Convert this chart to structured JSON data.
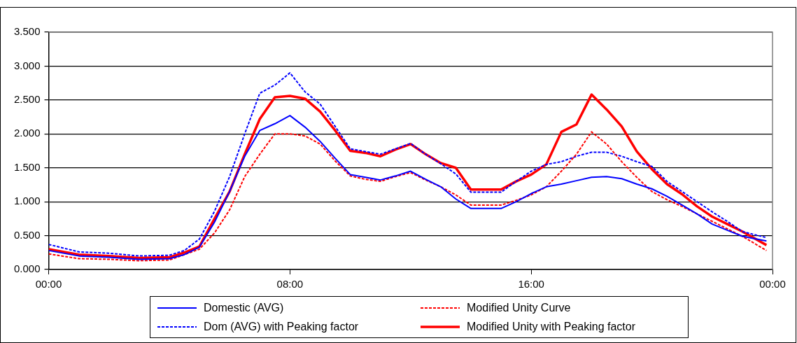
{
  "chart_data": {
    "type": "line",
    "x": [
      0,
      1,
      2,
      3,
      4,
      4.5,
      5,
      5.5,
      6,
      6.5,
      7,
      7.5,
      8,
      8.5,
      9,
      9.5,
      10,
      10.5,
      11,
      11.5,
      12,
      12.5,
      13,
      13.5,
      14,
      15,
      15.5,
      16,
      16.5,
      17,
      17.5,
      18,
      18.5,
      19,
      19.5,
      20,
      20.5,
      21,
      21.5,
      22,
      22.5,
      23,
      23.8
    ],
    "xlim": [
      0,
      24
    ],
    "xticks": [
      {
        "value": 0,
        "label": "00:00"
      },
      {
        "value": 8,
        "label": "08:00"
      },
      {
        "value": 16,
        "label": "16:00"
      },
      {
        "value": 24,
        "label": "00:00"
      }
    ],
    "ylim": [
      0,
      3.5
    ],
    "yticks": [
      {
        "value": 0,
        "label": "0.000"
      },
      {
        "value": 0.5,
        "label": "0.500"
      },
      {
        "value": 1,
        "label": "1.000"
      },
      {
        "value": 1.5,
        "label": "1.500"
      },
      {
        "value": 2,
        "label": "2.000"
      },
      {
        "value": 2.5,
        "label": "2.500"
      },
      {
        "value": 3,
        "label": "3.000"
      },
      {
        "value": 3.5,
        "label": "3.500"
      }
    ],
    "grid": "y",
    "legend": "bottom",
    "marker": "none",
    "series": [
      {
        "name": "Domestic (AVG)",
        "color": "#0000ff",
        "line_style": "solid",
        "values": [
          0.28,
          0.2,
          0.18,
          0.15,
          0.16,
          0.22,
          0.33,
          0.7,
          1.15,
          1.67,
          2.05,
          2.15,
          2.27,
          2.1,
          1.89,
          1.64,
          1.4,
          1.36,
          1.32,
          1.38,
          1.45,
          1.33,
          1.22,
          1.04,
          0.9,
          0.9,
          1.0,
          1.12,
          1.22,
          1.26,
          1.31,
          1.36,
          1.37,
          1.34,
          1.26,
          1.19,
          1.08,
          0.95,
          0.82,
          0.67,
          0.58,
          0.49,
          0.42
        ]
      },
      {
        "name": "Modified Unity Curve",
        "color": "#ff0000",
        "line_style": "dashed",
        "values": [
          0.23,
          0.16,
          0.15,
          0.13,
          0.14,
          0.22,
          0.3,
          0.54,
          0.88,
          1.37,
          1.7,
          2.0,
          2.0,
          1.97,
          1.85,
          1.6,
          1.38,
          1.33,
          1.3,
          1.37,
          1.43,
          1.32,
          1.22,
          1.1,
          0.95,
          0.95,
          1.02,
          1.1,
          1.22,
          1.45,
          1.7,
          2.03,
          1.85,
          1.59,
          1.36,
          1.15,
          1.03,
          0.93,
          0.82,
          0.71,
          0.6,
          0.49,
          0.28
        ]
      },
      {
        "name": "Dom (AVG) with Peaking factor",
        "color": "#0000ff",
        "line_style": "dashed",
        "values": [
          0.37,
          0.26,
          0.24,
          0.2,
          0.21,
          0.28,
          0.45,
          0.86,
          1.37,
          2.0,
          2.6,
          2.72,
          2.9,
          2.62,
          2.44,
          2.11,
          1.78,
          1.74,
          1.7,
          1.78,
          1.86,
          1.7,
          1.56,
          1.41,
          1.14,
          1.14,
          1.3,
          1.45,
          1.55,
          1.59,
          1.67,
          1.73,
          1.73,
          1.67,
          1.59,
          1.52,
          1.3,
          1.15,
          1.0,
          0.85,
          0.71,
          0.56,
          0.47
        ]
      },
      {
        "name": "Modified Unity with Peaking factor",
        "color": "#ff0000",
        "line_style": "solid",
        "values": [
          0.3,
          0.22,
          0.2,
          0.17,
          0.18,
          0.25,
          0.34,
          0.75,
          1.15,
          1.7,
          2.22,
          2.54,
          2.56,
          2.52,
          2.33,
          2.05,
          1.75,
          1.72,
          1.67,
          1.77,
          1.85,
          1.7,
          1.57,
          1.5,
          1.18,
          1.18,
          1.3,
          1.4,
          1.55,
          2.03,
          2.14,
          2.58,
          2.36,
          2.11,
          1.74,
          1.48,
          1.26,
          1.11,
          0.93,
          0.78,
          0.67,
          0.56,
          0.36
        ]
      }
    ]
  }
}
